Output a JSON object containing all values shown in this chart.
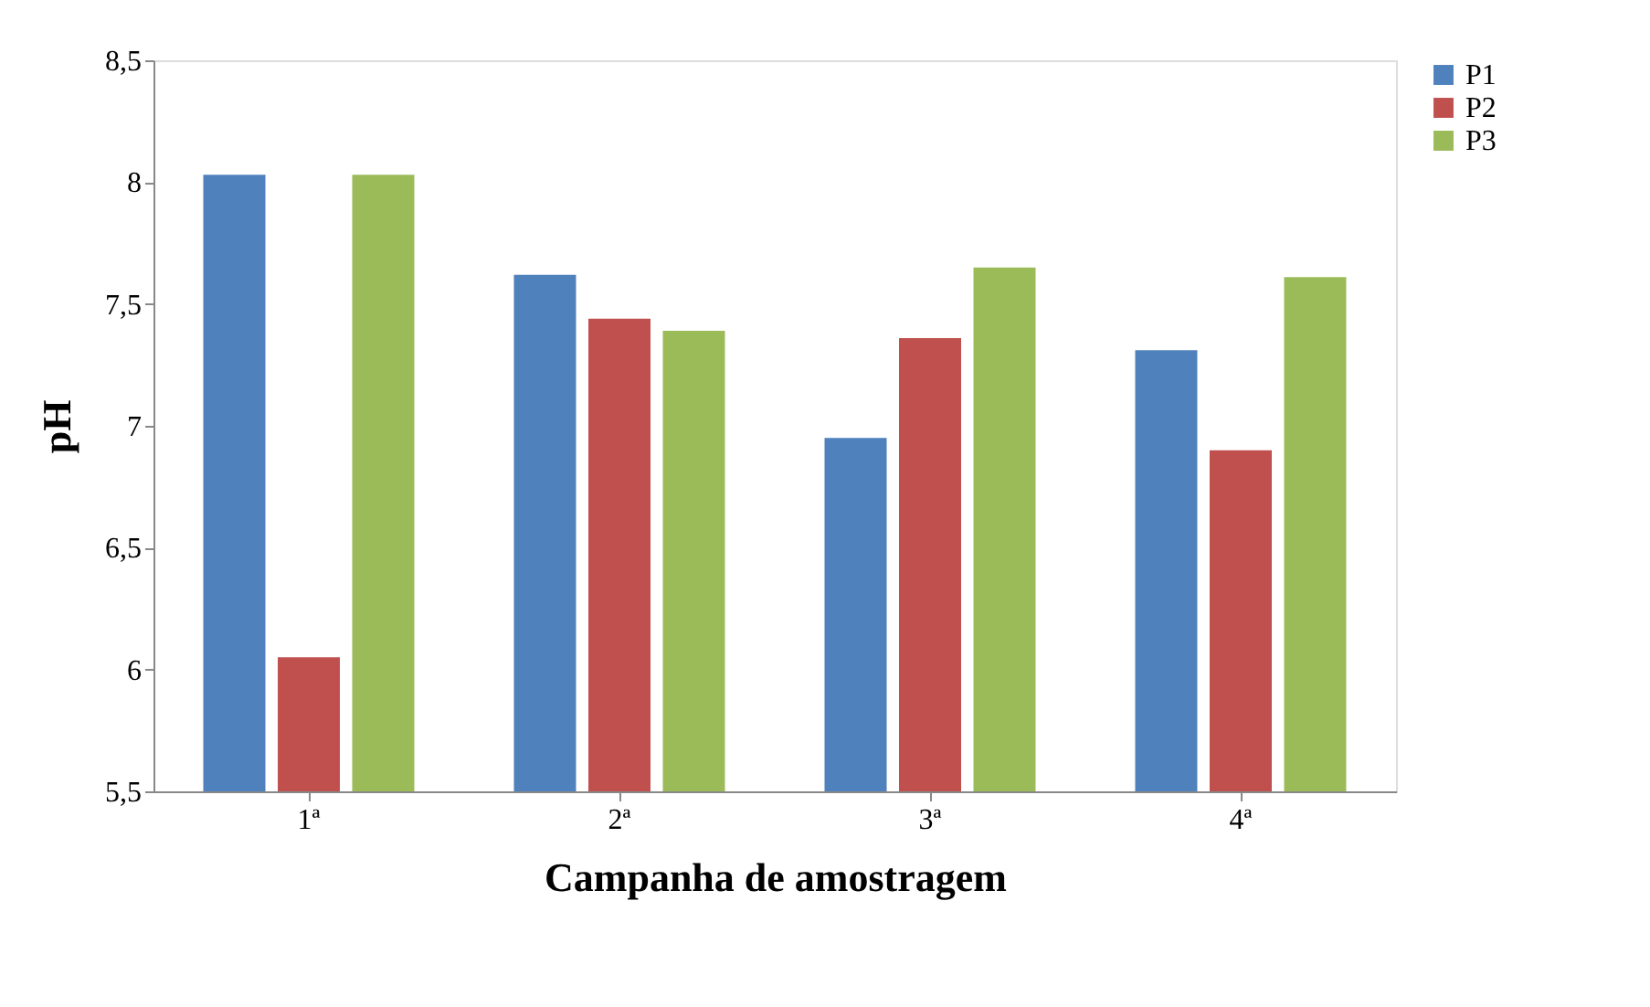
{
  "chart_data": {
    "type": "bar",
    "xlabel": "Campanha de amostragem",
    "ylabel": "pH",
    "categories": [
      "1ª",
      "2ª",
      "3ª",
      "4ª"
    ],
    "series": [
      {
        "name": "P1",
        "color": "#4f81bd",
        "values": [
          8.03,
          7.62,
          6.95,
          7.31
        ]
      },
      {
        "name": "P2",
        "color": "#c0504d",
        "values": [
          6.05,
          7.44,
          7.36,
          6.9
        ]
      },
      {
        "name": "P3",
        "color": "#9bbb59",
        "values": [
          8.03,
          7.39,
          7.65,
          7.61
        ]
      }
    ],
    "ylim": [
      5.5,
      8.5
    ],
    "yticks": [
      {
        "value": 5.5,
        "label": "5,5"
      },
      6,
      {
        "value": 6.5,
        "label": "6,5"
      },
      7,
      {
        "value": 7.5,
        "label": "7,5"
      },
      8,
      {
        "value": 8.5,
        "label": "8,5"
      }
    ],
    "grid": false,
    "legend": "right"
  }
}
